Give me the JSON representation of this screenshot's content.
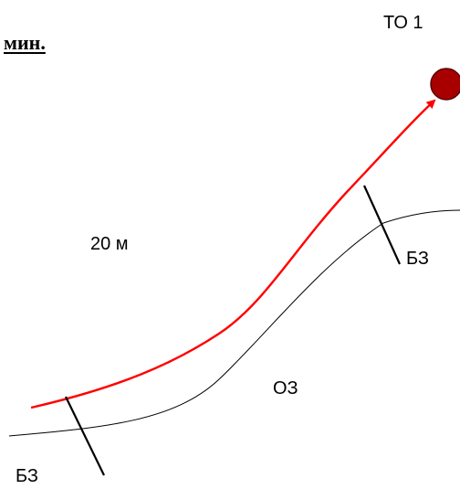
{
  "header": {
    "fragment": "мин."
  },
  "labels": {
    "target": "ТО 1",
    "distance": "20 м",
    "bz_right": "БЗ",
    "oz": "ОЗ",
    "bz_left": "БЗ"
  },
  "colors": {
    "route": "#ff0000",
    "line": "#000000",
    "target_fill": "#a80000",
    "target_stroke": "#5a0000"
  }
}
